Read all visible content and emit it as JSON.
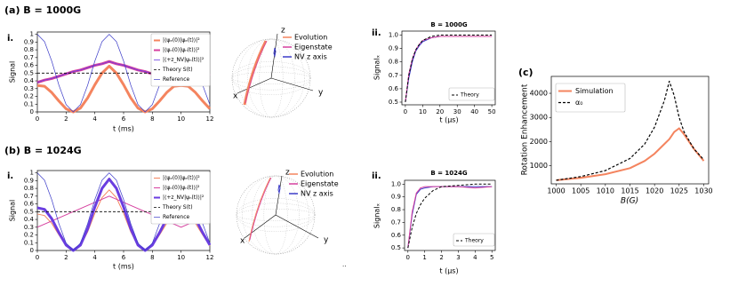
{
  "chart_data": [
    {
      "type": "line",
      "panel_label": "(a) B = 1000G",
      "subpanel_label": "i.",
      "xlabel": "t (ms)",
      "ylabel": "Signal",
      "x": [
        0,
        0.5,
        1,
        1.5,
        2,
        2.5,
        3,
        3.5,
        4,
        4.5,
        5,
        5.5,
        6,
        6.5,
        7,
        7.5,
        8,
        8.5,
        9,
        9.5,
        10,
        10.5,
        11,
        11.5,
        12
      ],
      "xlim": [
        0,
        12
      ],
      "xticks": [
        0,
        2,
        4,
        6,
        8,
        10,
        12
      ],
      "ylim": [
        0,
        1.03
      ],
      "yticks": [
        0,
        0.1,
        0.2,
        0.3,
        0.4,
        0.5,
        0.6,
        0.7,
        0.8,
        0.9,
        1
      ],
      "legend": "upper right",
      "series": [
        {
          "name": "|⟨ψₑ(0)|ψₑ(t)⟩|²",
          "color": "#f4845f",
          "line_width": 3,
          "values": [
            0.34,
            0.33,
            0.25,
            0.14,
            0.04,
            0,
            0.05,
            0.18,
            0.35,
            0.5,
            0.59,
            0.5,
            0.35,
            0.18,
            0.05,
            0,
            0.04,
            0.14,
            0.25,
            0.33,
            0.34,
            0.33,
            0.25,
            0.14,
            0.04
          ]
        },
        {
          "name": "|⟨ψₙ(0)|ψₙ(t)⟩|²",
          "color": "#d6409f",
          "line_width": 3,
          "values": [
            0.38,
            0.41,
            0.43,
            0.46,
            0.49,
            0.52,
            0.54,
            0.57,
            0.6,
            0.62,
            0.65,
            0.62,
            0.6,
            0.57,
            0.54,
            0.52,
            0.49,
            0.46,
            0.43,
            0.41,
            0.38,
            0.41,
            0.43,
            0.46,
            0.49
          ]
        },
        {
          "name": "|⟨+z_NV|ψₙ(t)⟩|²",
          "color": "#6a3de0",
          "line_width": 0.8,
          "values": [
            0.38,
            0.41,
            0.43,
            0.46,
            0.49,
            0.52,
            0.54,
            0.57,
            0.6,
            0.62,
            0.65,
            0.62,
            0.6,
            0.57,
            0.54,
            0.52,
            0.49,
            0.46,
            0.43,
            0.41,
            0.38,
            0.41,
            0.43,
            0.46,
            0.49
          ]
        },
        {
          "name": "Theory S(t)",
          "color": "#000000",
          "line_width": 0.8,
          "dash": true,
          "x": [
            0,
            12
          ],
          "values": [
            0.5,
            0.5
          ]
        },
        {
          "name": "Reference",
          "color": "#3c3cc8",
          "line_width": 0.7,
          "values": [
            1,
            0.905,
            0.655,
            0.345,
            0.095,
            0,
            0.095,
            0.345,
            0.655,
            0.905,
            1,
            0.905,
            0.655,
            0.345,
            0.095,
            0,
            0.095,
            0.345,
            0.655,
            0.905,
            1,
            0.905,
            0.655,
            0.345,
            0.095
          ]
        }
      ]
    },
    {
      "type": "sphere",
      "axis_labels": [
        "x",
        "y",
        "z"
      ],
      "series": [
        {
          "name": "Evolution",
          "color": "#f4845f"
        },
        {
          "name": "Eigenstate",
          "color": "#d6409f"
        },
        {
          "name": "NV z axis",
          "color": "#3c3cc8"
        }
      ]
    },
    {
      "type": "line",
      "subpanel_label": "ii.",
      "title": "B = 1000G",
      "xlabel": "t (μs)",
      "ylabel": "Signalₓ",
      "x": [
        0,
        2,
        4,
        6,
        8,
        10,
        15,
        20,
        30,
        40,
        50
      ],
      "xlim": [
        -2,
        52
      ],
      "xticks": [
        0,
        10,
        20,
        30,
        40,
        50
      ],
      "ylim": [
        0.48,
        1.03
      ],
      "yticks": [
        0.5,
        0.6,
        0.7,
        0.8,
        0.9,
        {
          "value": 1,
          "label": "1.0"
        }
      ],
      "legend": "lower right",
      "series": [
        {
          "color": "#3c3cc8",
          "line_width": 1,
          "values": [
            0.5,
            0.68,
            0.8,
            0.88,
            0.92,
            0.95,
            0.98,
            0.99,
            0.99,
            0.99,
            0.99
          ]
        },
        {
          "color": "#d6409f",
          "line_width": 1,
          "values": [
            0.5,
            0.71,
            0.82,
            0.89,
            0.93,
            0.96,
            0.98,
            0.99,
            0.99,
            0.99,
            0.99
          ]
        },
        {
          "name": "Theory",
          "color": "#000000",
          "line_width": 1,
          "dash": true,
          "values": [
            0.5,
            0.7,
            0.82,
            0.89,
            0.93,
            0.96,
            0.99,
            1,
            1,
            1,
            1
          ]
        }
      ]
    },
    {
      "type": "line",
      "panel_label": "(b) B = 1024G",
      "subpanel_label": "i.",
      "xlabel": "t (ms)",
      "ylabel": "Signal",
      "x": [
        0,
        0.5,
        1,
        1.5,
        2,
        2.5,
        3,
        3.5,
        4,
        4.5,
        5,
        5.5,
        6,
        6.5,
        7,
        7.5,
        8,
        8.5,
        9,
        9.5,
        10,
        10.5,
        11,
        11.5,
        12
      ],
      "xlim": [
        0,
        12
      ],
      "xticks": [
        0,
        2,
        4,
        6,
        8,
        10,
        12
      ],
      "ylim": [
        0,
        1.03
      ],
      "yticks": [
        0,
        0.1,
        0.2,
        0.3,
        0.4,
        0.5,
        0.6,
        0.7,
        0.8,
        0.9,
        1
      ],
      "legend": "upper right",
      "series": [
        {
          "name": "|⟨ψₑ(0)|ψₑ(t)⟩|²",
          "color": "#f4845f",
          "line_width": 1,
          "values": [
            0.47,
            0.45,
            0.35,
            0.2,
            0.06,
            0,
            0.06,
            0.24,
            0.48,
            0.68,
            0.78,
            0.68,
            0.48,
            0.24,
            0.06,
            0,
            0.06,
            0.2,
            0.35,
            0.45,
            0.47,
            0.45,
            0.35,
            0.2,
            0.06
          ]
        },
        {
          "name": "|⟨ψₙ(0)|ψₙ(t)⟩|²",
          "color": "#d6409f",
          "line_width": 1,
          "values": [
            0.3,
            0.34,
            0.38,
            0.42,
            0.46,
            0.5,
            0.54,
            0.58,
            0.62,
            0.66,
            0.7,
            0.66,
            0.62,
            0.58,
            0.54,
            0.5,
            0.46,
            0.42,
            0.38,
            0.34,
            0.3,
            0.34,
            0.38,
            0.42,
            0.46
          ]
        },
        {
          "name": "|⟨+z_NV|ψₙ(t)⟩|²",
          "color": "#6a3de0",
          "line_width": 3,
          "values": [
            0.55,
            0.53,
            0.41,
            0.23,
            0.07,
            0,
            0.07,
            0.28,
            0.56,
            0.8,
            0.92,
            0.8,
            0.56,
            0.28,
            0.07,
            0,
            0.07,
            0.23,
            0.41,
            0.53,
            0.55,
            0.53,
            0.41,
            0.23,
            0.07
          ]
        },
        {
          "name": "Theory S(t)",
          "color": "#000000",
          "line_width": 0.8,
          "dash": true,
          "x": [
            0,
            12
          ],
          "values": [
            0.5,
            0.5
          ]
        },
        {
          "name": "Reference",
          "color": "#3c3cc8",
          "line_width": 0.7,
          "values": [
            1,
            0.905,
            0.655,
            0.345,
            0.095,
            0,
            0.095,
            0.345,
            0.655,
            0.905,
            1,
            0.905,
            0.655,
            0.345,
            0.095,
            0,
            0.095,
            0.345,
            0.655,
            0.905,
            1,
            0.905,
            0.655,
            0.345,
            0.095
          ]
        }
      ]
    },
    {
      "type": "sphere",
      "axis_labels": [
        "x",
        "y",
        "z"
      ],
      "annotation": "..",
      "series": [
        {
          "name": "Evolution",
          "color": "#f4845f"
        },
        {
          "name": "Eigenstate",
          "color": "#d6409f"
        },
        {
          "name": "NV z axis",
          "color": "#3c3cc8"
        }
      ]
    },
    {
      "type": "line",
      "subpanel_label": "ii.",
      "title": "B = 1024G",
      "xlabel": "t (μs)",
      "ylabel": "Signalₓ",
      "x": [
        0,
        0.25,
        0.5,
        0.75,
        1,
        1.5,
        2,
        3,
        4,
        5
      ],
      "xlim": [
        -0.2,
        5.2
      ],
      "xticks": [
        0,
        1,
        2,
        3,
        4,
        5
      ],
      "ylim": [
        0.48,
        1.03
      ],
      "yticks": [
        0.5,
        0.6,
        0.7,
        0.8,
        0.9,
        {
          "value": 1,
          "label": "1.0"
        }
      ],
      "legend": "lower right",
      "series": [
        {
          "color": "#3c3cc8",
          "line_width": 1,
          "values": [
            0.5,
            0.76,
            0.92,
            0.96,
            0.97,
            0.98,
            0.98,
            0.98,
            0.98,
            0.98
          ]
        },
        {
          "color": "#d6409f",
          "line_width": 1,
          "values": [
            0.5,
            0.78,
            0.93,
            0.97,
            0.98,
            0.98,
            0.98,
            0.98,
            0.97,
            0.98
          ]
        },
        {
          "name": "Theory",
          "color": "#000000",
          "line_width": 1,
          "dash": true,
          "values": [
            0.5,
            0.66,
            0.77,
            0.84,
            0.89,
            0.95,
            0.98,
            0.99,
            1,
            1
          ]
        }
      ]
    },
    {
      "type": "line",
      "panel_label": "(c)",
      "xlabel": "B(G)",
      "ylabel": "Rotation Enhancement",
      "x": [
        1000,
        1005,
        1010,
        1015,
        1018,
        1020,
        1022,
        1023,
        1024,
        1025,
        1026,
        1028,
        1030
      ],
      "xlim": [
        999,
        1031
      ],
      "xticks": [
        1000,
        1005,
        1010,
        1015,
        1020,
        1025,
        1030
      ],
      "ylim": [
        250,
        4700
      ],
      "yticks": [
        1000,
        2000,
        3000,
        4000
      ],
      "legend": "upper left",
      "series": [
        {
          "name": "Simulation",
          "color": "#f4845f",
          "line_width": 2,
          "values": [
            400,
            500,
            650,
            900,
            1200,
            1500,
            1900,
            2100,
            2400,
            2550,
            2300,
            1700,
            1200
          ]
        },
        {
          "name": "α₀",
          "color": "#000000",
          "line_width": 1.2,
          "dash": true,
          "values": [
            400,
            550,
            800,
            1300,
            1900,
            2600,
            3700,
            4500,
            3900,
            3000,
            2400,
            1700,
            1250
          ]
        }
      ]
    }
  ]
}
